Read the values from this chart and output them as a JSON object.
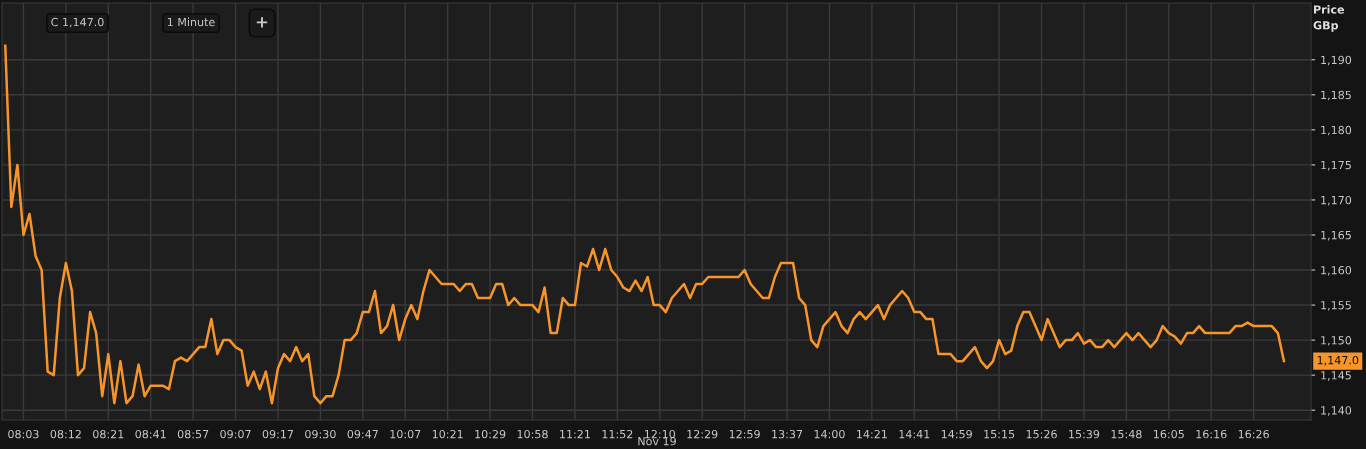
{
  "chart_data": {
    "type": "line",
    "xlabel": "Nov 19",
    "ylabel": "Price\nGBp",
    "categories": [
      null,
      null,
      null,
      "08:03",
      null,
      null,
      null,
      null,
      null,
      null,
      "08:12",
      null,
      null,
      null,
      null,
      null,
      null,
      "08:21",
      null,
      null,
      null,
      null,
      null,
      null,
      "08:41",
      null,
      null,
      null,
      null,
      null,
      null,
      "08:57",
      null,
      null,
      null,
      null,
      null,
      null,
      "09:07",
      null,
      null,
      null,
      null,
      null,
      null,
      "09:17",
      null,
      null,
      null,
      null,
      null,
      null,
      "09:30",
      null,
      null,
      null,
      null,
      null,
      null,
      "09:47",
      null,
      null,
      null,
      null,
      null,
      null,
      "10:07",
      null,
      null,
      null,
      null,
      null,
      null,
      "10:21",
      null,
      null,
      null,
      null,
      null,
      null,
      "10:29",
      null,
      null,
      null,
      null,
      null,
      null,
      "10:58",
      null,
      null,
      null,
      null,
      null,
      null,
      "11:21",
      null,
      null,
      null,
      null,
      null,
      null,
      "11:52",
      null,
      null,
      null,
      null,
      null,
      null,
      "12:10",
      null,
      null,
      null,
      null,
      null,
      null,
      "12:29",
      null,
      null,
      null,
      null,
      null,
      null,
      "12:59",
      null,
      null,
      null,
      null,
      null,
      null,
      "13:37",
      null,
      null,
      null,
      null,
      null,
      null,
      "14:00",
      null,
      null,
      null,
      null,
      null,
      null,
      "14:21",
      null,
      null,
      null,
      null,
      null,
      null,
      "14:41",
      null,
      null,
      null,
      null,
      null,
      null,
      "14:59",
      null,
      null,
      null,
      null,
      null,
      null,
      "15:15",
      null,
      null,
      null,
      null,
      null,
      null,
      "15:26",
      null,
      null,
      null,
      null,
      null,
      null,
      "15:39",
      null,
      null,
      null,
      null,
      null,
      null,
      "15:48",
      null,
      null,
      null,
      null,
      null,
      null,
      "16:05",
      null,
      null,
      null,
      null,
      null,
      null,
      "16:16",
      null,
      null,
      null,
      null,
      null,
      null,
      "16:26",
      null,
      null,
      null,
      null,
      null
    ],
    "series": [
      {
        "color": "#f7952b",
        "values": [
          1192,
          1169,
          1175,
          1165,
          1168,
          1162,
          1160,
          1145.5,
          1145,
          1156,
          1161,
          1157,
          1145,
          1146,
          1154,
          1151,
          1142,
          1148,
          1141,
          1147,
          1141,
          1142,
          1146.5,
          1142,
          1143.5,
          1143.5,
          1143.5,
          1143,
          1147,
          1147.5,
          1147,
          1148,
          1149,
          1149,
          1153,
          1148,
          1150,
          1150,
          1149,
          1148.5,
          1143.5,
          1145.5,
          1143,
          1145.5,
          1141,
          1146,
          1148,
          1147,
          1149,
          1147,
          1148,
          1142,
          1141,
          1142,
          1142,
          1145,
          1150,
          1150,
          1151,
          1154,
          1154,
          1157,
          1151,
          1152,
          1155,
          1150,
          1153,
          1155,
          1153,
          1157,
          1160,
          1159,
          1158,
          1158,
          1158,
          1157,
          1158,
          1158,
          1156,
          1156,
          1156,
          1158,
          1158,
          1155,
          1156,
          1155,
          1155,
          1155,
          1154,
          1157.5,
          1151,
          1151,
          1156,
          1155,
          1155,
          1161,
          1160.5,
          1163,
          1160,
          1163,
          1160,
          1159,
          1157.5,
          1157,
          1158.5,
          1157,
          1159,
          1155,
          1155,
          1154,
          1156,
          1157,
          1158,
          1156,
          1158,
          1158,
          1159,
          1159,
          1159,
          1159,
          1159,
          1159,
          1160,
          1158,
          1157,
          1156,
          1156,
          1159,
          1161,
          1161,
          1161,
          1156,
          1155,
          1150,
          1149,
          1152,
          1153,
          1154,
          1152,
          1151,
          1153,
          1154,
          1153,
          1154,
          1155,
          1153,
          1155,
          1156,
          1157,
          1156,
          1154,
          1154,
          1153,
          1153,
          1148,
          1148,
          1148,
          1147,
          1147,
          1148,
          1149,
          1147,
          1146,
          1147,
          1150,
          1148,
          1148.5,
          1152,
          1154,
          1154,
          1152,
          1150,
          1153,
          1151,
          1149,
          1150,
          1150,
          1151,
          1149.5,
          1150,
          1149,
          1149,
          1150,
          1149,
          1150,
          1151,
          1150,
          1151,
          1150,
          1149,
          1150,
          1152,
          1151,
          1150.5,
          1149.5,
          1151,
          1151,
          1152,
          1151,
          1151,
          1151,
          1151,
          1151,
          1152,
          1152,
          1152.5,
          1152,
          1152,
          1152,
          1152,
          1151,
          1147
        ]
      }
    ],
    "ylim": [
      1138.6,
      1198.1
    ],
    "yticks": [
      {
        "value": 1140,
        "label": "1,140"
      },
      {
        "value": 1145,
        "label": "1,145"
      },
      {
        "value": 1150,
        "label": "1,150"
      },
      {
        "value": 1155,
        "label": "1,155"
      },
      {
        "value": 1160,
        "label": "1,160"
      },
      {
        "value": 1165,
        "label": "1,165"
      },
      {
        "value": 1170,
        "label": "1,170"
      },
      {
        "value": 1175,
        "label": "1,175"
      },
      {
        "value": 1180,
        "label": "1,180"
      },
      {
        "value": 1185,
        "label": "1,185"
      },
      {
        "value": 1190,
        "label": "1,190"
      }
    ],
    "grid": true,
    "annotations": [
      "C 1,147.0",
      "1 Minute",
      "+",
      "1,147.0"
    ]
  }
}
